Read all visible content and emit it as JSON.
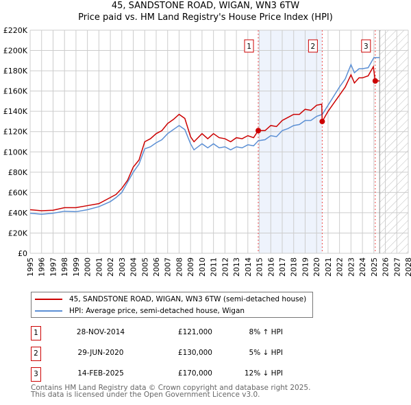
{
  "chart_data": {
    "type": "line",
    "title": "45, SANDSTONE ROAD, WIGAN, WN3 6TW",
    "subtitle": "Price paid vs. HM Land Registry's House Price Index (HPI)",
    "xlim": [
      1995,
      2028
    ],
    "ylim": [
      0,
      220000
    ],
    "x_ticks": [
      "1995",
      "1996",
      "1997",
      "1998",
      "1999",
      "2000",
      "2001",
      "2002",
      "2003",
      "2004",
      "2005",
      "2006",
      "2007",
      "2008",
      "2009",
      "2010",
      "2011",
      "2012",
      "2013",
      "2014",
      "2015",
      "2016",
      "2017",
      "2018",
      "2019",
      "2020",
      "2021",
      "2022",
      "2023",
      "2024",
      "2025",
      "2026",
      "2027",
      "2028"
    ],
    "y_ticks": [
      "£0",
      "£20K",
      "£40K",
      "£60K",
      "£80K",
      "£100K",
      "£120K",
      "£140K",
      "£160K",
      "£180K",
      "£200K",
      "£220K"
    ],
    "grid": true,
    "shaded_range": [
      2014.91,
      2020.49
    ],
    "forecast_hatch_from": 2025.5,
    "series": [
      {
        "name": "45, SANDSTONE ROAD, WIGAN, WN3 6TW (semi-detached house)",
        "color": "#cc0000",
        "x": [
          1995,
          1996,
          1997,
          1998,
          1999,
          2000,
          2001,
          2002,
          2002.5,
          2003,
          2003.5,
          2004,
          2004.5,
          2005,
          2005.5,
          2006,
          2006.5,
          2007,
          2007.5,
          2008,
          2008.5,
          2009,
          2009.3,
          2010,
          2010.5,
          2011,
          2011.5,
          2012,
          2012.5,
          2013,
          2013.5,
          2014,
          2014.5,
          2014.91,
          2015.5,
          2016,
          2016.5,
          2017,
          2017.5,
          2018,
          2018.5,
          2019,
          2019.5,
          2020,
          2020.45,
          2020.49,
          2021,
          2021.5,
          2022,
          2022.5,
          2023,
          2023.3,
          2023.7,
          2024,
          2024.5,
          2024.95,
          2025.12,
          2025.5
        ],
        "y": [
          43000,
          42000,
          42500,
          45000,
          45000,
          47000,
          49000,
          55000,
          58000,
          64000,
          72000,
          85000,
          92000,
          110000,
          113000,
          118000,
          121000,
          128000,
          132000,
          137000,
          133000,
          115000,
          110000,
          118000,
          113000,
          118000,
          114000,
          113000,
          110000,
          114000,
          113000,
          116000,
          114000,
          121000,
          121000,
          126000,
          125000,
          131000,
          134000,
          137000,
          137000,
          142000,
          141000,
          146000,
          147000,
          130000,
          140000,
          148000,
          156000,
          164000,
          176000,
          168000,
          173000,
          173000,
          175000,
          184000,
          170000,
          170000
        ]
      },
      {
        "name": "HPI: Average price, semi-detached house, Wigan",
        "color": "#5b8fd4",
        "x": [
          1995,
          1996,
          1997,
          1998,
          1999,
          2000,
          2001,
          2002,
          2002.5,
          2003,
          2003.5,
          2004,
          2004.5,
          2005,
          2005.5,
          2006,
          2006.5,
          2007,
          2007.5,
          2008,
          2008.5,
          2009,
          2009.3,
          2010,
          2010.5,
          2011,
          2011.5,
          2012,
          2012.5,
          2013,
          2013.5,
          2014,
          2014.5,
          2014.91,
          2015.5,
          2016,
          2016.5,
          2017,
          2017.5,
          2018,
          2018.5,
          2019,
          2019.5,
          2020,
          2020.5,
          2021,
          2021.5,
          2022,
          2022.5,
          2023,
          2023.3,
          2023.7,
          2024,
          2024.5,
          2025,
          2025.5
        ],
        "y": [
          39500,
          38500,
          39500,
          41500,
          41000,
          43000,
          46000,
          51000,
          55000,
          60000,
          70000,
          80000,
          88000,
          103000,
          105000,
          109000,
          112000,
          118000,
          122000,
          126000,
          122000,
          108000,
          102000,
          108000,
          104000,
          108000,
          104000,
          105000,
          102000,
          105000,
          104000,
          107000,
          106000,
          111000,
          112000,
          116000,
          115000,
          121000,
          123000,
          126000,
          127000,
          131000,
          131000,
          135000,
          137000,
          146000,
          155000,
          164000,
          172000,
          186000,
          178000,
          182000,
          182000,
          183000,
          193000,
          193000
        ]
      }
    ],
    "sales": [
      {
        "label": "1",
        "x": 2014.91,
        "y": 121000
      },
      {
        "label": "2",
        "x": 2020.49,
        "y": 130000
      },
      {
        "label": "3",
        "x": 2025.12,
        "y": 170000
      }
    ]
  },
  "legend": {
    "item1": "45, SANDSTONE ROAD, WIGAN, WN3 6TW (semi-detached house)",
    "item2": "HPI: Average price, semi-detached house, Wigan"
  },
  "transactions": [
    {
      "num": "1",
      "date": "28-NOV-2014",
      "price": "£121,000",
      "hpi": "8% ↑ HPI"
    },
    {
      "num": "2",
      "date": "29-JUN-2020",
      "price": "£130,000",
      "hpi": "5% ↓ HPI"
    },
    {
      "num": "3",
      "date": "14-FEB-2025",
      "price": "£170,000",
      "hpi": "12% ↓ HPI"
    }
  ],
  "footer": {
    "line1": "Contains HM Land Registry data © Crown copyright and database right 2025.",
    "line2": "This data is licensed under the Open Government Licence v3.0."
  }
}
